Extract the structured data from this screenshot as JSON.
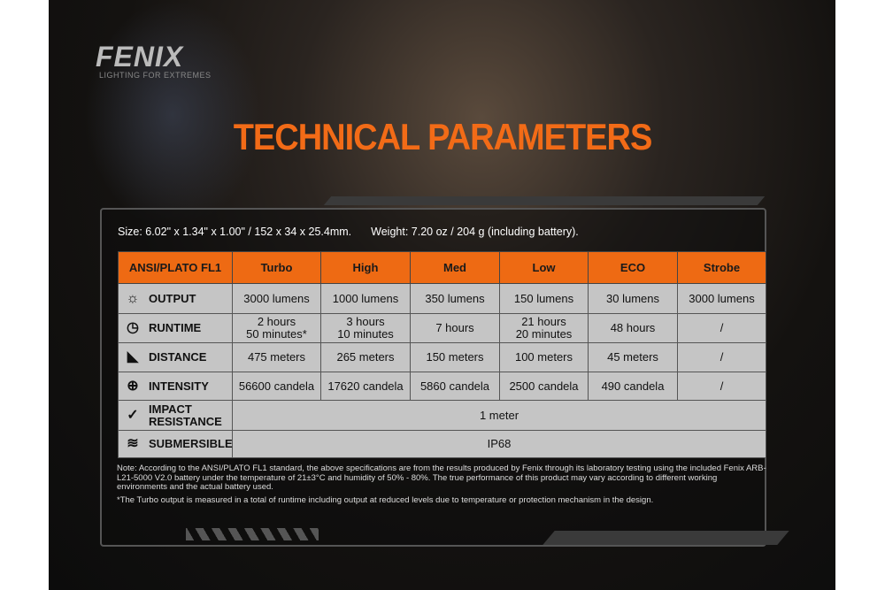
{
  "brand": {
    "logo": "FENIX",
    "tagline": "LIGHTING FOR EXTREMES"
  },
  "title": "TECHNICAL PARAMETERS",
  "specs": {
    "size": "Size: 6.02\" x 1.34\" x 1.00\" / 152 x 34 x 25.4mm.",
    "weight": "Weight: 7.20 oz / 204 g (including battery)."
  },
  "colors": {
    "accent": "#ee6a13",
    "cell": "#c5c5c5"
  },
  "table": {
    "headers": [
      "ANSI/PLATO FL1",
      "Turbo",
      "High",
      "Med",
      "Low",
      "ECO",
      "Strobe"
    ],
    "rows": [
      {
        "label": "OUTPUT",
        "icon": "light-burst-icon",
        "cells": [
          "3000 lumens",
          "1000 lumens",
          "350 lumens",
          "150 lumens",
          "30 lumens",
          "3000 lumens"
        ]
      },
      {
        "label": "RUNTIME",
        "icon": "clock-icon",
        "cells": [
          "2 hours\n50 minutes*",
          "3 hours\n10 minutes",
          "7 hours",
          "21 hours\n20 minutes",
          "48 hours",
          "/"
        ]
      },
      {
        "label": "DISTANCE",
        "icon": "beam-distance-icon",
        "cells": [
          "475 meters",
          "265 meters",
          "150 meters",
          "100 meters",
          "45 meters",
          "/"
        ]
      },
      {
        "label": "INTENSITY",
        "icon": "target-icon",
        "cells": [
          "56600 candela",
          "17620 candela",
          "5860 candela",
          "2500 candela",
          "490 candela",
          "/"
        ]
      },
      {
        "label": "IMPACT\nRESISTANCE",
        "icon": "impact-icon",
        "value": "1 meter"
      },
      {
        "label": "SUBMERSIBLE",
        "icon": "water-icon",
        "value": "IP68"
      }
    ]
  },
  "notes": [
    "Note: According to the ANSI/PLATO FL1 standard, the above specifications are from the results produced by Fenix through its laboratory testing using the included Fenix ARB-L21-5000 V2.0 battery under the temperature of 21±3°C and humidity of 50% - 80%. The true performance of this product may vary according to different working environments and the actual battery used.",
    "*The Turbo output is measured in a total of runtime including output at reduced levels due to temperature or protection mechanism in the design."
  ]
}
